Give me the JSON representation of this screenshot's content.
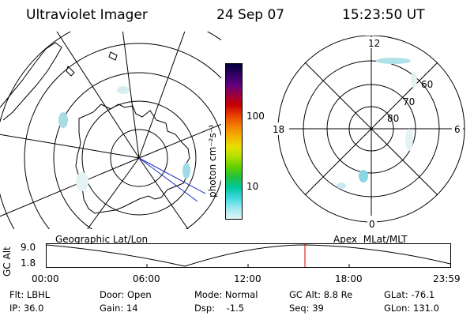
{
  "header": {
    "title": "Ultraviolet Imager",
    "date": "24 Sep 07",
    "time": "15:23:50 UT"
  },
  "colorbar": {
    "label": "photon cm⁻²s⁻¹",
    "ticks": [
      "100",
      "10"
    ],
    "colors": [
      "#000040",
      "#300060",
      "#600080",
      "#9a0040",
      "#c80000",
      "#e84000",
      "#f08000",
      "#f4b000",
      "#e8e000",
      "#b0e000",
      "#60d000",
      "#20c040",
      "#00c8a0",
      "#40d8e0",
      "#a0e8f0",
      "#e0f4f8"
    ]
  },
  "left_map": {
    "caption": "Geographic Lat/Lon"
  },
  "right_map": {
    "caption": "Apex  MLat/MLT",
    "mlt_labels": [
      "12",
      "6",
      "0",
      "18"
    ],
    "mlat_labels": [
      "60",
      "70",
      "80"
    ]
  },
  "timeline": {
    "ylabel": "GC Alt",
    "ymax": "9.0",
    "ymin": "1.8",
    "xticks": [
      "00:00",
      "06:00",
      "12:00",
      "18:00",
      "23:59"
    ],
    "marker_time": "15:23:50",
    "marker_color": "#d00000"
  },
  "info": {
    "row1": [
      "Flt: LBHL",
      "Door: Open",
      "Mode: Normal",
      "GC Alt: 8.8 Re",
      "GLat: -76.1"
    ],
    "row2": [
      "IP: 36.0",
      "Gain: 14",
      "Dsp:    -1.5",
      "Seq: 39",
      "GLon: 131.0"
    ]
  }
}
